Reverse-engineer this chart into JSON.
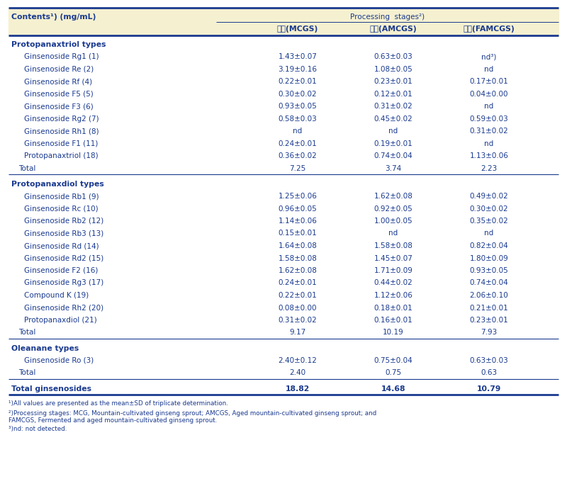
{
  "header_bg": "#f5f0d0",
  "col1_header": "Contents¹) (mg/mL)",
  "processing_stages_label": "Processing  stages²)",
  "sub_headers": [
    "원료(MCGS)",
    "숙성(AMCGS)",
    "발효(FAMCGS)"
  ],
  "sections": [
    {
      "section_title": "Protopanaxtriol types",
      "rows": [
        [
          "Ginsenoside Rg1 (1)",
          "1.43±0.07",
          "0.63±0.03",
          "nd³)"
        ],
        [
          "Ginsenoside Re (2)",
          "3.19±0.16",
          "1.08±0.05",
          "nd"
        ],
        [
          "Ginsenoside Rf (4)",
          "0.22±0.01",
          "0.23±0.01",
          "0.17±0.01"
        ],
        [
          "Ginsenoside F5 (5)",
          "0.30±0.02",
          "0.12±0.01",
          "0.04±0.00"
        ],
        [
          "Ginsenoside F3 (6)",
          "0.93±0.05",
          "0.31±0.02",
          "nd"
        ],
        [
          "Ginsenoside Rg2 (7)",
          "0.58±0.03",
          "0.45±0.02",
          "0.59±0.03"
        ],
        [
          "Ginsenoside Rh1 (8)",
          "nd",
          "nd",
          "0.31±0.02"
        ],
        [
          "Ginsenoside F1 (11)",
          "0.24±0.01",
          "0.19±0.01",
          "nd"
        ],
        [
          "Protopanaxtriol (18)",
          "0.36±0.02",
          "0.74±0.04",
          "1.13±0.06"
        ],
        [
          "Total",
          "7.25",
          "3.74",
          "2.23"
        ]
      ]
    },
    {
      "section_title": "Protopanaxdiol types",
      "rows": [
        [
          "Ginsenoside Rb1 (9)",
          "1.25±0.06",
          "1.62±0.08",
          "0.49±0.02"
        ],
        [
          "Ginsenoside Rc (10)",
          "0.96±0.05",
          "0.92±0.05",
          "0.30±0.02"
        ],
        [
          "Ginsenoside Rb2 (12)",
          "1.14±0.06",
          "1.00±0.05",
          "0.35±0.02"
        ],
        [
          "Ginsenoside Rb3 (13)",
          "0.15±0.01",
          "nd",
          "nd"
        ],
        [
          "Ginsenoside Rd (14)",
          "1.64±0.08",
          "1.58±0.08",
          "0.82±0.04"
        ],
        [
          "Ginsenoside Rd2 (15)",
          "1.58±0.08",
          "1.45±0.07",
          "1.80±0.09"
        ],
        [
          "Ginsenoside F2 (16)",
          "1.62±0.08",
          "1.71±0.09",
          "0.93±0.05"
        ],
        [
          "Ginsenoside Rg3 (17)",
          "0.24±0.01",
          "0.44±0.02",
          "0.74±0.04"
        ],
        [
          "Compound K (19)",
          "0.22±0.01",
          "1.12±0.06",
          "2.06±0.10"
        ],
        [
          "Ginsenoside Rh2 (20)",
          "0.08±0.00",
          "0.18±0.01",
          "0.21±0.01"
        ],
        [
          "Protopanaxdiol (21)",
          "0.31±0.02",
          "0.16±0.01",
          "0.23±0.01"
        ],
        [
          "Total",
          "9.17",
          "10.19",
          "7.93"
        ]
      ]
    },
    {
      "section_title": "Oleanane types",
      "rows": [
        [
          "Ginsenoside Ro (3)",
          "2.40±0.12",
          "0.75±0.04",
          "0.63±0.03"
        ],
        [
          "Total",
          "2.40",
          "0.75",
          "0.63"
        ]
      ]
    }
  ],
  "total_row": [
    "Total ginsenosides",
    "18.82",
    "14.68",
    "10.79"
  ],
  "footnotes": [
    "¹)All values are presented as the mean±SD of triplicate determination.",
    "²)Processing stages: MCG, Mountain-cultivated ginseng sprout; AMCGS, Aged mountain-cultivated ginseng sprout; and FAMCGS, Fermented and aged mountain-cultivated ginseng sprout.",
    "³)nd: not detected."
  ],
  "text_color": "#1a3a8f",
  "line_color": "#1a3a8f"
}
